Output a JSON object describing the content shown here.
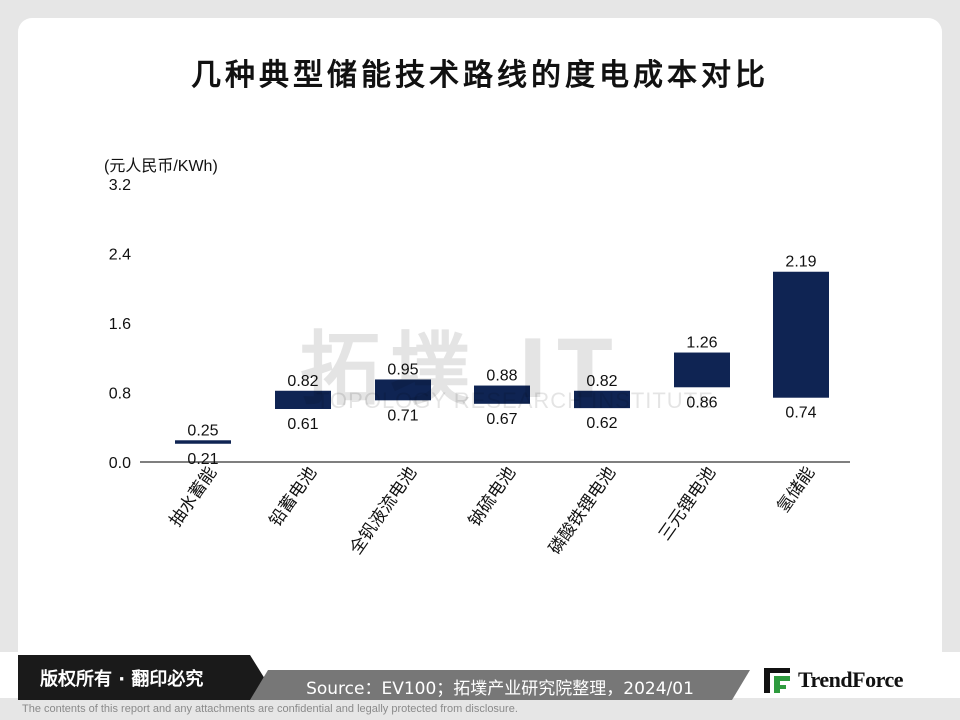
{
  "header": {
    "title": "几种典型储能技术路线的度电成本对比"
  },
  "chart_data": {
    "type": "bar",
    "unit_label": "(元人民币/KWh)",
    "ylim": [
      0,
      3.2
    ],
    "yticks": [
      "0.0",
      "0.8",
      "1.6",
      "2.4",
      "3.2"
    ],
    "ytick_values": [
      0,
      0.8,
      1.6,
      2.4,
      3.2
    ],
    "categories": [
      "抽水蓄能",
      "铅蓄电池",
      "全钒液流电池",
      "钠硫电池",
      "磷酸铁锂电池",
      "三元锂电池",
      "氢储能"
    ],
    "low": [
      0.21,
      0.61,
      0.71,
      0.67,
      0.62,
      0.86,
      0.74
    ],
    "high": [
      0.25,
      0.82,
      0.95,
      0.88,
      0.82,
      1.26,
      2.19
    ],
    "bar_color": "#0f2453",
    "grid": false
  },
  "watermark": {
    "main": "拓墣 IT",
    "sub": "TOPOLOGY RESEARCH INSTITUTE"
  },
  "footer": {
    "copyright": "版权所有 · 翻印必究",
    "source": "Source：EV100；拓墣产业研究院整理，2024/01",
    "brand": "TrendForce",
    "disclaimer": "The contents of this report and any attachments are confidential and legally protected from disclosure."
  },
  "colors": {
    "logo_green": "#2e9b3e",
    "footer_black": "#1a1a1a",
    "footer_gray": "#777777"
  }
}
